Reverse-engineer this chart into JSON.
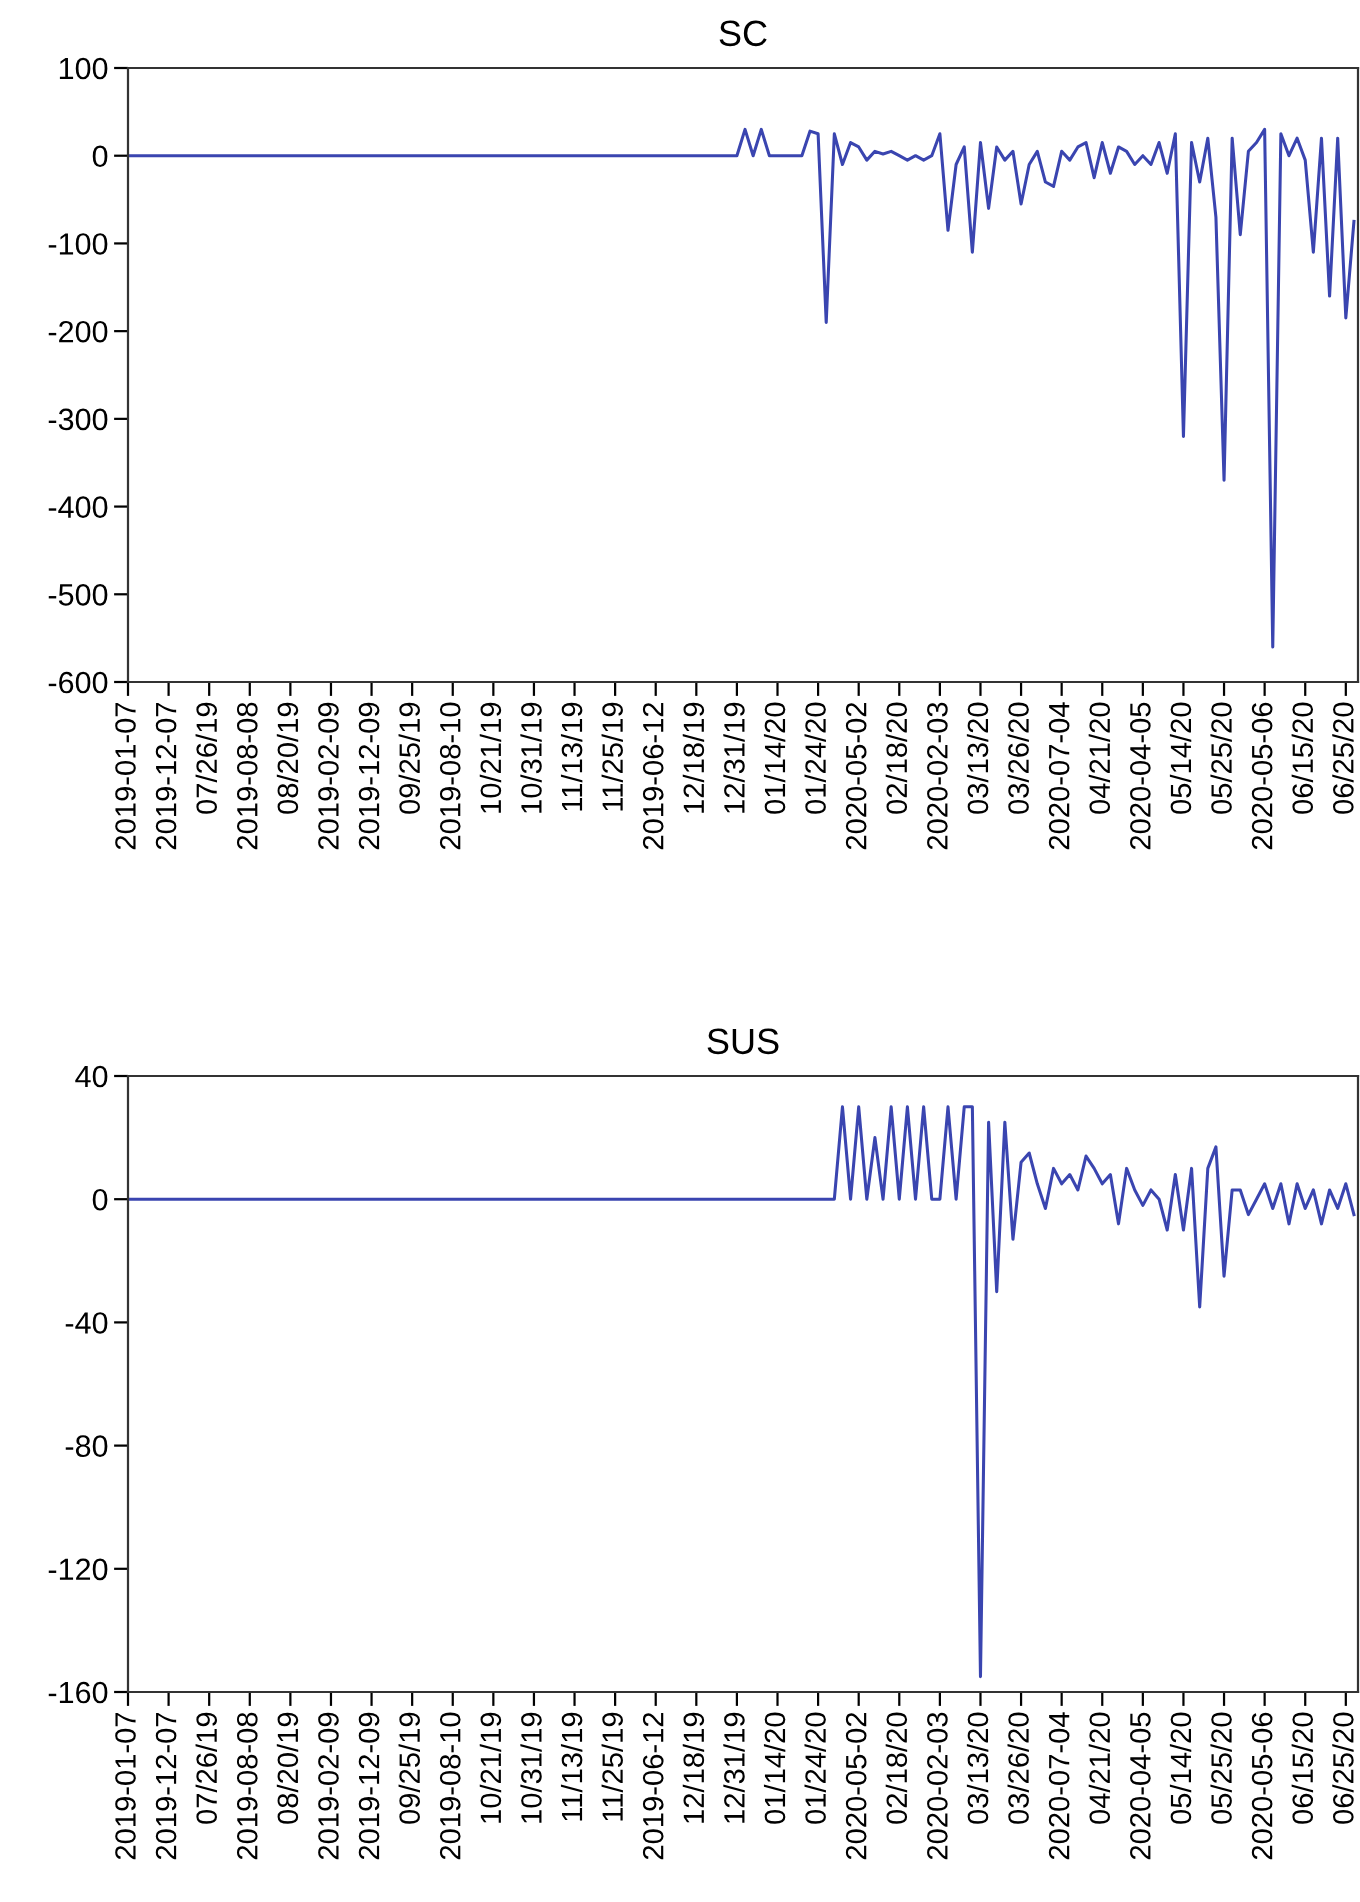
{
  "chart_data": [
    {
      "type": "line",
      "title": "SC",
      "color": "#3a45b0",
      "grid": false,
      "ylim": [
        -600,
        100
      ],
      "yticks": [
        -600,
        -500,
        -400,
        -300,
        -200,
        -100,
        0,
        100
      ],
      "categories": [
        "2019-01-07",
        null,
        null,
        null,
        null,
        "2019-12-07",
        null,
        null,
        null,
        null,
        "07/26/19",
        null,
        null,
        null,
        null,
        "2019-08-08",
        null,
        null,
        null,
        null,
        "08/20/19",
        null,
        null,
        null,
        null,
        "2019-02-09",
        null,
        null,
        null,
        null,
        "2019-12-09",
        null,
        null,
        null,
        null,
        "09/25/19",
        null,
        null,
        null,
        null,
        "2019-08-10",
        null,
        null,
        null,
        null,
        "10/21/19",
        null,
        null,
        null,
        null,
        "10/31/19",
        null,
        null,
        null,
        null,
        "11/13/19",
        null,
        null,
        null,
        null,
        "11/25/19",
        null,
        null,
        null,
        null,
        "2019-06-12",
        null,
        null,
        null,
        null,
        "12/18/19",
        null,
        null,
        null,
        null,
        "12/31/19",
        null,
        null,
        null,
        null,
        "01/14/20",
        null,
        null,
        null,
        null,
        "01/24/20",
        null,
        null,
        null,
        null,
        "2020-05-02",
        null,
        null,
        null,
        null,
        "02/18/20",
        null,
        null,
        null,
        null,
        "2020-02-03",
        null,
        null,
        null,
        null,
        "03/13/20",
        null,
        null,
        null,
        null,
        "03/26/20",
        null,
        null,
        null,
        null,
        "2020-07-04",
        null,
        null,
        null,
        null,
        "04/21/20",
        null,
        null,
        null,
        null,
        "2020-04-05",
        null,
        null,
        null,
        null,
        "05/14/20",
        null,
        null,
        null,
        null,
        "05/25/20",
        null,
        null,
        null,
        null,
        "2020-05-06",
        null,
        null,
        null,
        null,
        "06/15/20",
        null,
        null,
        null,
        null,
        "06/25/20",
        null
      ],
      "values": [
        0,
        0,
        0,
        0,
        0,
        0,
        0,
        0,
        0,
        0,
        0,
        0,
        0,
        0,
        0,
        0,
        0,
        0,
        0,
        0,
        0,
        0,
        0,
        0,
        0,
        0,
        0,
        0,
        0,
        0,
        0,
        0,
        0,
        0,
        0,
        0,
        0,
        0,
        0,
        0,
        0,
        0,
        0,
        0,
        0,
        0,
        0,
        0,
        0,
        0,
        0,
        0,
        0,
        0,
        0,
        0,
        0,
        0,
        0,
        0,
        0,
        0,
        0,
        0,
        0,
        0,
        0,
        0,
        0,
        0,
        0,
        0,
        0,
        0,
        0,
        0,
        30,
        0,
        30,
        0,
        0,
        0,
        0,
        0,
        28,
        25,
        -190,
        25,
        -10,
        15,
        10,
        -5,
        5,
        2,
        5,
        0,
        -5,
        0,
        -5,
        0,
        25,
        -85,
        -10,
        10,
        -110,
        15,
        -60,
        10,
        -5,
        5,
        -55,
        -10,
        5,
        -30,
        -35,
        5,
        -5,
        10,
        15,
        -25,
        15,
        -20,
        10,
        5,
        -10,
        0,
        -10,
        15,
        -20,
        25,
        -320,
        15,
        -30,
        20,
        -70,
        -370,
        20,
        -90,
        5,
        15,
        30,
        -560,
        25,
        0,
        20,
        -5,
        -110,
        20,
        -160,
        20,
        -185,
        -75
      ]
    },
    {
      "type": "line",
      "title": "SUS",
      "color": "#3a45b0",
      "grid": false,
      "ylim": [
        -160,
        40
      ],
      "yticks": [
        -160,
        -120,
        -80,
        -40,
        0,
        40
      ],
      "categories": [
        "2019-01-07",
        null,
        null,
        null,
        null,
        "2019-12-07",
        null,
        null,
        null,
        null,
        "07/26/19",
        null,
        null,
        null,
        null,
        "2019-08-08",
        null,
        null,
        null,
        null,
        "08/20/19",
        null,
        null,
        null,
        null,
        "2019-02-09",
        null,
        null,
        null,
        null,
        "2019-12-09",
        null,
        null,
        null,
        null,
        "09/25/19",
        null,
        null,
        null,
        null,
        "2019-08-10",
        null,
        null,
        null,
        null,
        "10/21/19",
        null,
        null,
        null,
        null,
        "10/31/19",
        null,
        null,
        null,
        null,
        "11/13/19",
        null,
        null,
        null,
        null,
        "11/25/19",
        null,
        null,
        null,
        null,
        "2019-06-12",
        null,
        null,
        null,
        null,
        "12/18/19",
        null,
        null,
        null,
        null,
        "12/31/19",
        null,
        null,
        null,
        null,
        "01/14/20",
        null,
        null,
        null,
        null,
        "01/24/20",
        null,
        null,
        null,
        null,
        "2020-05-02",
        null,
        null,
        null,
        null,
        "02/18/20",
        null,
        null,
        null,
        null,
        "2020-02-03",
        null,
        null,
        null,
        null,
        "03/13/20",
        null,
        null,
        null,
        null,
        "03/26/20",
        null,
        null,
        null,
        null,
        "2020-07-04",
        null,
        null,
        null,
        null,
        "04/21/20",
        null,
        null,
        null,
        null,
        "2020-04-05",
        null,
        null,
        null,
        null,
        "05/14/20",
        null,
        null,
        null,
        null,
        "05/25/20",
        null,
        null,
        null,
        null,
        "2020-05-06",
        null,
        null,
        null,
        null,
        "06/15/20",
        null,
        null,
        null,
        null,
        "06/25/20",
        null
      ],
      "values": [
        0,
        0,
        0,
        0,
        0,
        0,
        0,
        0,
        0,
        0,
        0,
        0,
        0,
        0,
        0,
        0,
        0,
        0,
        0,
        0,
        0,
        0,
        0,
        0,
        0,
        0,
        0,
        0,
        0,
        0,
        0,
        0,
        0,
        0,
        0,
        0,
        0,
        0,
        0,
        0,
        0,
        0,
        0,
        0,
        0,
        0,
        0,
        0,
        0,
        0,
        0,
        0,
        0,
        0,
        0,
        0,
        0,
        0,
        0,
        0,
        0,
        0,
        0,
        0,
        0,
        0,
        0,
        0,
        0,
        0,
        0,
        0,
        0,
        0,
        0,
        0,
        0,
        0,
        0,
        0,
        0,
        0,
        0,
        0,
        0,
        0,
        0,
        0,
        30,
        0,
        30,
        0,
        20,
        0,
        30,
        0,
        30,
        0,
        30,
        0,
        0,
        30,
        0,
        30,
        30,
        -155,
        25,
        -30,
        25,
        -13,
        12,
        15,
        5,
        -3,
        10,
        5,
        8,
        3,
        14,
        10,
        5,
        8,
        -8,
        10,
        3,
        -2,
        3,
        0,
        -10,
        8,
        -10,
        10,
        -35,
        10,
        17,
        -25,
        3,
        3,
        -5,
        0,
        5,
        -3,
        5,
        -8,
        5,
        -3,
        3,
        -8,
        3,
        -3,
        5,
        -5
      ]
    }
  ]
}
